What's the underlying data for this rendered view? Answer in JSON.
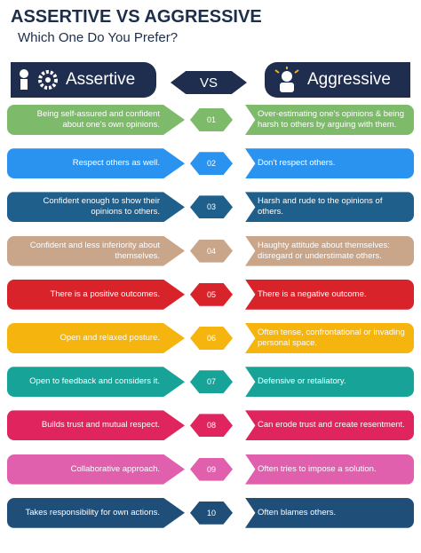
{
  "header": {
    "title": "ASSERTIVE VS AGGRESSIVE",
    "subtitle": "Which One Do You Prefer?"
  },
  "columns": {
    "left": "Assertive",
    "middle": "VS",
    "right": "Aggressive"
  },
  "rows": [
    {
      "number": "01",
      "color": "#7dbb6a",
      "left": "Being self-assured and confident about one's own opinions.",
      "right": "Over-estimating one's opinions & being harsh to others by arguing with them."
    },
    {
      "number": "02",
      "color": "#2a93f0",
      "left": "Respect others as well.",
      "right": "Don't respect others."
    },
    {
      "number": "03",
      "color": "#1e5f8c",
      "left": "Confident enough to show their opinions to others.",
      "right": "Harsh and rude to the opinions of others."
    },
    {
      "number": "04",
      "color": "#c9a58a",
      "left": "Confident and less inferiority about themselves.",
      "right": "Haughty attitude about themselves: disregard or understimate others."
    },
    {
      "number": "05",
      "color": "#d9232b",
      "left": "There is a positive outcomes.",
      "right": "There is a negative outcome."
    },
    {
      "number": "06",
      "color": "#f6b40e",
      "left": "Open and relaxed posture.",
      "right": "Often tense, confrontational or invading personal space."
    },
    {
      "number": "07",
      "color": "#17a398",
      "left": "Open to feedback and considers it.",
      "right": "Defensive or retaliatory."
    },
    {
      "number": "08",
      "color": "#e0245e",
      "left": "Builds trust and mutual respect.",
      "right": "Can erode trust and create resentment."
    },
    {
      "number": "09",
      "color": "#e060ae",
      "left": "Collaborative approach.",
      "right": "Often tries to impose a solution."
    },
    {
      "number": "10",
      "color": "#1f4f79",
      "left": "Takes responsibility for own actions.",
      "right": "Often blames others."
    }
  ]
}
